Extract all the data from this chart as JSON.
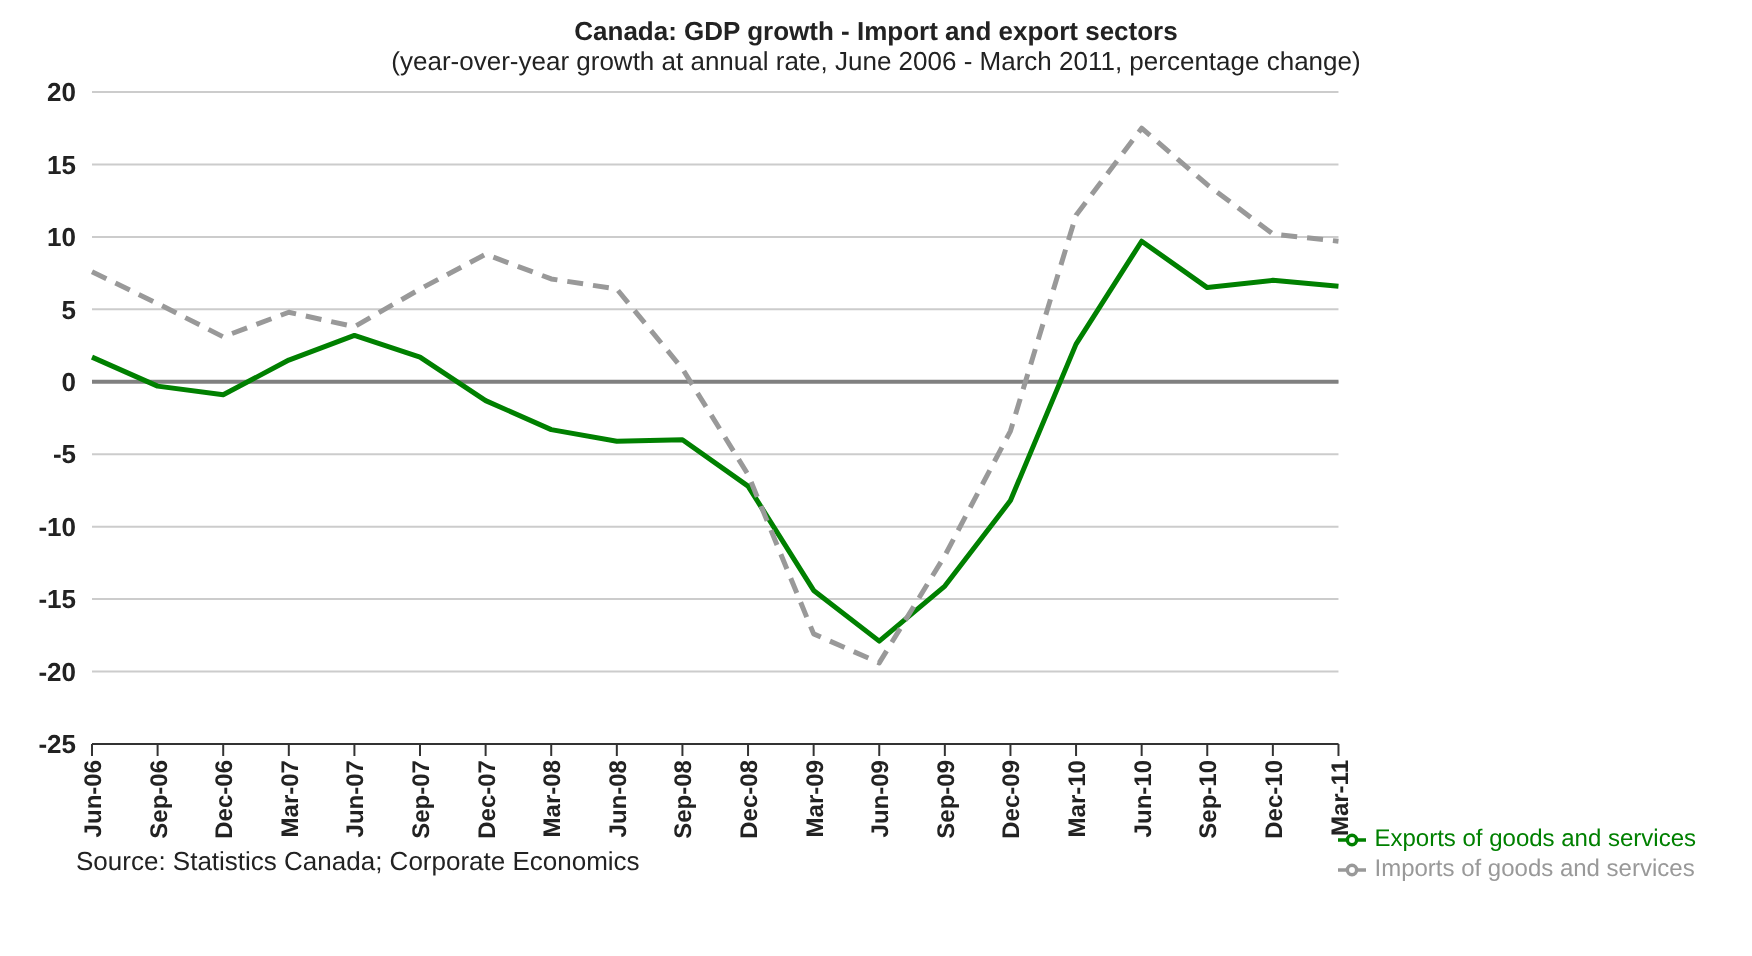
{
  "chart_data": {
    "type": "line",
    "title": "Canada: GDP growth - Import and export sectors",
    "subtitle": "(year-over-year growth at annual rate, June 2006 - March 2011, percentage change)",
    "categories": [
      "Jun-06",
      "Sep-06",
      "Dec-06",
      "Mar-07",
      "Jun-07",
      "Sep-07",
      "Dec-07",
      "Mar-08",
      "Jun-08",
      "Sep-08",
      "Dec-08",
      "Mar-09",
      "Jun-09",
      "Sep-09",
      "Dec-09",
      "Mar-10",
      "Jun-10",
      "Sep-10",
      "Dec-10",
      "Mar-11"
    ],
    "series": [
      {
        "name": "Exports  of goods and services",
        "color": "#008000",
        "line_style": "solid",
        "values": [
          1.7,
          -0.3,
          -0.9,
          1.5,
          3.2,
          1.7,
          -1.3,
          -3.3,
          -4.1,
          -4.0,
          -7.2,
          -14.4,
          -17.9,
          -14.1,
          -8.2,
          2.6,
          9.7,
          6.5,
          7.0,
          6.6
        ]
      },
      {
        "name": "Imports of goods and services",
        "color": "#999999",
        "line_style": "dashed",
        "values": [
          7.6,
          5.4,
          3.1,
          4.8,
          3.8,
          6.4,
          8.8,
          7.1,
          6.4,
          0.9,
          -6.4,
          -17.4,
          -19.4,
          -12.0,
          -3.4,
          11.5,
          17.5,
          13.6,
          10.2,
          9.7
        ]
      }
    ],
    "ylim": [
      -25,
      20
    ],
    "yticks": [
      -25,
      -20,
      -15,
      -10,
      -5,
      0,
      5,
      10,
      15,
      20
    ],
    "grid": "y",
    "marker": "none",
    "legend": "bottom right",
    "ref_lines": [
      {
        "axis": "y",
        "value": 0,
        "color": "#808080"
      }
    ],
    "annotations": [
      "Source: Statistics Canada; Corporate Economics"
    ]
  }
}
